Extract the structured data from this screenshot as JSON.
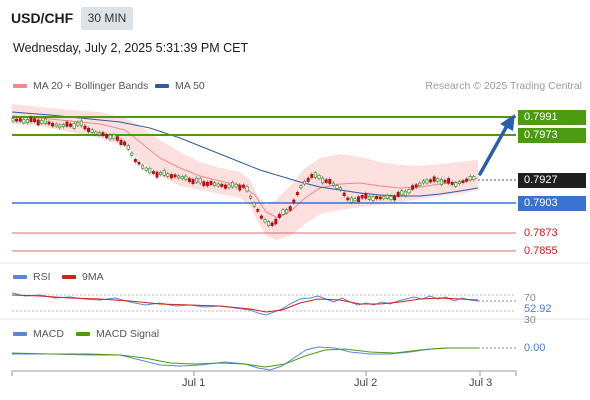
{
  "header": {
    "symbol": "USD/CHF",
    "timeframe": "30 MIN",
    "datetime": "Wednesday, July 2, 2025 5:31:39 PM CET"
  },
  "legend": {
    "ma20": "MA 20 + Bollinger Bands",
    "ma50": "MA 50",
    "ma20_color": "#f08a8a",
    "ma50_color": "#2e5c9e"
  },
  "credit": "Research © 2025 Trading Central",
  "price_tags": {
    "resistance_2": "0.7991",
    "resistance_1": "0.7973",
    "last": "0.7927",
    "pivot": "0.7903",
    "support_1": "0.7873",
    "support_2": "0.7855"
  },
  "rsi": {
    "label": "RSI",
    "ma_label": "9MA",
    "level_high": "70",
    "value": "52.92",
    "level_low": "30"
  },
  "macd": {
    "label": "MACD",
    "signal_label": "MACD Signal",
    "value": "0.00"
  },
  "x_axis": {
    "labels": [
      "Jul 1",
      "Jul 2",
      "Jul 3"
    ]
  },
  "colors": {
    "resistance": "#4c9a0f",
    "pivot": "#3a73cf",
    "support": "#d11a1a",
    "bull": "#2e7d0f",
    "bear": "#b51212"
  }
}
